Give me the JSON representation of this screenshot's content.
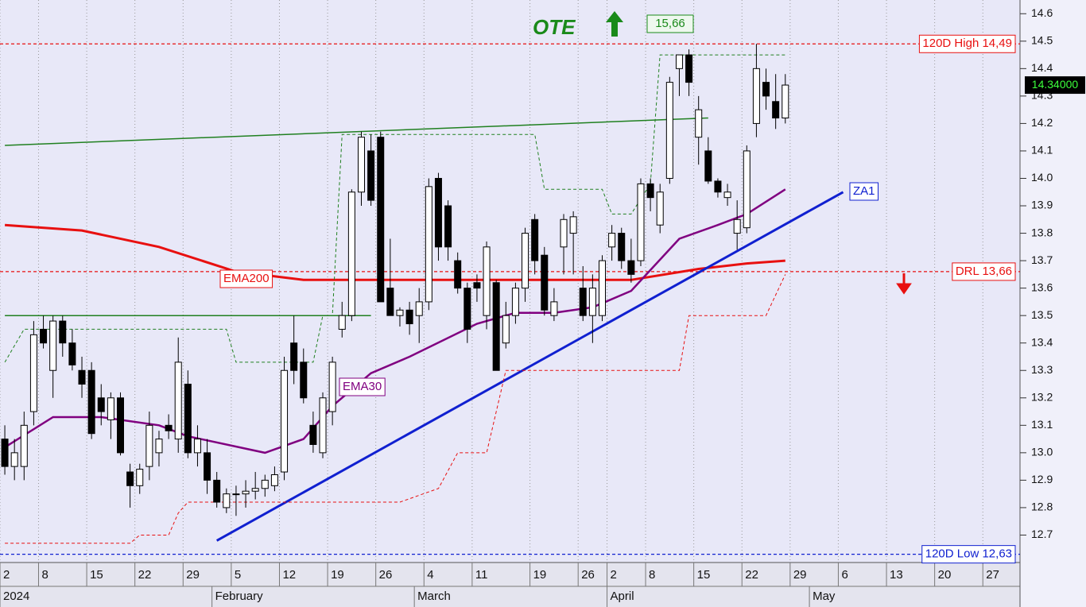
{
  "chart_data": {
    "type": "candlestick",
    "x": [
      "2024-01-02",
      "2024-01-03",
      "2024-01-04",
      "2024-01-05",
      "2024-01-08",
      "2024-01-09",
      "2024-01-10",
      "2024-01-11",
      "2024-01-12",
      "2024-01-15",
      "2024-01-16",
      "2024-01-17",
      "2024-01-18",
      "2024-01-19",
      "2024-01-22",
      "2024-01-23",
      "2024-01-24",
      "2024-01-25",
      "2024-01-26",
      "2024-01-29",
      "2024-01-30",
      "2024-01-31",
      "2024-02-01",
      "2024-02-02",
      "2024-02-05",
      "2024-02-06",
      "2024-02-07",
      "2024-02-08",
      "2024-02-09",
      "2024-02-12",
      "2024-02-13",
      "2024-02-14",
      "2024-02-15",
      "2024-02-16",
      "2024-02-19",
      "2024-02-20",
      "2024-02-21",
      "2024-02-22",
      "2024-02-23",
      "2024-02-26",
      "2024-02-27",
      "2024-02-28",
      "2024-02-29",
      "2024-03-01",
      "2024-03-04",
      "2024-03-05",
      "2024-03-06",
      "2024-03-07",
      "2024-03-08",
      "2024-03-11",
      "2024-03-12",
      "2024-03-13",
      "2024-03-14",
      "2024-03-15",
      "2024-03-18",
      "2024-03-19",
      "2024-03-20",
      "2024-03-21",
      "2024-03-22",
      "2024-03-25",
      "2024-03-26",
      "2024-03-27",
      "2024-03-28",
      "2024-04-02",
      "2024-04-03",
      "2024-04-04",
      "2024-04-05",
      "2024-04-08",
      "2024-04-09",
      "2024-04-10",
      "2024-04-11",
      "2024-04-12",
      "2024-04-15",
      "2024-04-16",
      "2024-04-17",
      "2024-04-18",
      "2024-04-19",
      "2024-04-22",
      "2024-04-23",
      "2024-04-24",
      "2024-04-25",
      "2024-04-26"
    ],
    "open": [
      13.05,
      12.95,
      12.95,
      13.15,
      13.45,
      13.3,
      13.48,
      13.4,
      13.3,
      13.3,
      13.2,
      13.12,
      13.2,
      12.93,
      12.88,
      12.95,
      13.0,
      13.1,
      13.05,
      13.25,
      13.0,
      13.0,
      12.9,
      12.8,
      12.85,
      12.85,
      12.86,
      12.87,
      12.88,
      12.93,
      13.4,
      13.33,
      13.1,
      13.0,
      13.15,
      13.45,
      13.5,
      13.95,
      14.1,
      14.15,
      13.6,
      13.5,
      13.52,
      13.5,
      13.55,
      14.0,
      13.9,
      13.7,
      13.6,
      13.62,
      13.5,
      13.62,
      13.4,
      13.5,
      13.6,
      13.85,
      13.72,
      13.5,
      13.75,
      13.8,
      13.6,
      13.5,
      13.5,
      13.75,
      13.8,
      13.7,
      13.7,
      13.98,
      13.83,
      14.0,
      14.4,
      14.45,
      14.15,
      14.1,
      13.99,
      13.93,
      13.8,
      13.82,
      14.2,
      14.35,
      14.28,
      14.22
    ],
    "high": [
      13.1,
      13.05,
      13.15,
      13.48,
      13.5,
      13.5,
      13.5,
      13.45,
      13.35,
      13.33,
      13.25,
      13.22,
      13.22,
      12.96,
      12.96,
      13.15,
      13.08,
      13.14,
      13.42,
      13.3,
      13.1,
      13.05,
      12.93,
      12.87,
      12.88,
      12.9,
      12.93,
      12.92,
      12.95,
      13.35,
      13.5,
      13.38,
      13.15,
      13.22,
      13.35,
      13.55,
      13.96,
      14.17,
      14.16,
      14.17,
      13.78,
      13.53,
      13.55,
      13.6,
      14.0,
      14.02,
      13.92,
      13.73,
      13.62,
      13.65,
      13.77,
      13.63,
      13.55,
      13.62,
      13.82,
      13.87,
      13.75,
      13.6,
      13.87,
      13.88,
      13.68,
      13.65,
      13.72,
      13.83,
      13.82,
      13.78,
      14.0,
      14.0,
      13.98,
      14.37,
      14.45,
      14.47,
      14.3,
      14.15,
      14.0,
      13.98,
      13.92,
      14.12,
      14.49,
      14.4,
      14.38,
      14.38
    ],
    "low": [
      12.92,
      12.9,
      12.9,
      13.1,
      13.38,
      13.2,
      13.35,
      13.3,
      13.2,
      13.05,
      13.1,
      13.05,
      12.99,
      12.8,
      12.85,
      12.9,
      12.95,
      13.05,
      13.0,
      12.98,
      12.95,
      12.85,
      12.8,
      12.78,
      12.77,
      12.8,
      12.83,
      12.84,
      12.86,
      12.9,
      13.25,
      13.18,
      13.0,
      12.98,
      13.1,
      13.42,
      13.48,
      13.9,
      13.9,
      13.55,
      13.5,
      13.46,
      13.43,
      13.4,
      13.52,
      13.7,
      13.7,
      13.58,
      13.4,
      13.55,
      13.45,
      13.3,
      13.38,
      13.47,
      13.55,
      13.65,
      13.5,
      13.48,
      13.65,
      13.65,
      13.48,
      13.4,
      13.48,
      13.7,
      13.67,
      13.62,
      13.68,
      13.88,
      13.8,
      13.98,
      14.3,
      14.3,
      14.05,
      13.98,
      13.93,
      13.9,
      13.74,
      13.8,
      14.15,
      14.25,
      14.18,
      14.2
    ],
    "close": [
      12.95,
      13.0,
      13.1,
      13.43,
      13.4,
      13.48,
      13.4,
      13.32,
      13.25,
      13.07,
      13.15,
      13.2,
      13.0,
      12.88,
      12.94,
      13.1,
      13.05,
      13.08,
      13.33,
      13.0,
      13.05,
      12.9,
      12.82,
      12.85,
      12.85,
      12.86,
      12.87,
      12.9,
      12.92,
      13.3,
      13.3,
      13.2,
      13.03,
      13.2,
      13.33,
      13.5,
      13.95,
      14.15,
      13.92,
      13.55,
      13.5,
      13.52,
      13.47,
      13.55,
      13.97,
      13.75,
      13.75,
      13.6,
      13.45,
      13.6,
      13.75,
      13.3,
      13.5,
      13.6,
      13.8,
      13.7,
      13.52,
      13.55,
      13.85,
      13.86,
      13.5,
      13.6,
      13.7,
      13.8,
      13.7,
      13.65,
      13.98,
      13.93,
      13.95,
      14.35,
      14.45,
      14.35,
      14.25,
      13.99,
      13.95,
      13.95,
      13.85,
      14.1,
      14.4,
      14.3,
      14.22,
      14.34
    ],
    "ylim": [
      12.6,
      14.65
    ],
    "yticks": [
      12.7,
      12.8,
      12.9,
      {
        "value": 13,
        "label": "13.0"
      },
      13.1,
      13.2,
      13.3,
      13.4,
      13.5,
      13.6,
      13.7,
      13.8,
      13.9,
      {
        "value": 14,
        "label": "14.0"
      },
      14.1,
      14.2,
      14.3,
      14.4,
      14.5,
      14.6
    ],
    "xticks": [
      {
        "value": "2024-01-02",
        "label": "2"
      },
      {
        "value": "2024-01-08",
        "label": "8"
      },
      {
        "value": "2024-01-15",
        "label": "15"
      },
      {
        "value": "2024-01-22",
        "label": "22"
      },
      {
        "value": "2024-01-29",
        "label": "29"
      },
      {
        "value": "2024-02-05",
        "label": "5"
      },
      {
        "value": "2024-02-12",
        "label": "12"
      },
      {
        "value": "2024-02-19",
        "label": "19"
      },
      {
        "value": "2024-02-26",
        "label": "26"
      },
      {
        "value": "2024-03-04",
        "label": "4"
      },
      {
        "value": "2024-03-11",
        "label": "11"
      },
      {
        "value": "2024-03-19",
        "label": "19"
      },
      {
        "value": "2024-03-26",
        "label": "26"
      },
      {
        "value": "2024-04-02",
        "label": "2"
      },
      {
        "value": "2024-04-08",
        "label": "8"
      },
      {
        "value": "2024-04-15",
        "label": "15"
      },
      {
        "value": "2024-04-22",
        "label": "22"
      },
      {
        "value": "2024-04-29",
        "label": "29"
      },
      {
        "value": "2024-05-06",
        "label": "6"
      },
      {
        "value": "2024-05-13",
        "label": "13"
      },
      {
        "value": "2024-05-20",
        "label": "20"
      },
      {
        "value": "2024-05-27",
        "label": "27"
      }
    ],
    "months": [
      {
        "value": "2024-01-02",
        "label": "2024"
      },
      {
        "value": "2024-02-01",
        "label": "February"
      },
      {
        "value": "2024-03-01",
        "label": "March"
      },
      {
        "value": "2024-04-02",
        "label": "April"
      },
      {
        "value": "2024-05-01",
        "label": "May"
      }
    ],
    "grid": true,
    "overlays": [
      {
        "name": "EMA200",
        "color": "#e81010",
        "line_width": 3,
        "dashed": false,
        "x": [
          "2024-01-02",
          "2024-01-12",
          "2024-01-24",
          "2024-02-05",
          "2024-02-14",
          "2024-02-28",
          "2024-03-11",
          "2024-03-21",
          "2024-04-04",
          "2024-04-15",
          "2024-04-22",
          "2024-04-26"
        ],
        "values": [
          13.83,
          13.81,
          13.75,
          13.66,
          13.63,
          13.63,
          13.63,
          13.63,
          13.63,
          13.67,
          13.69,
          13.7
        ]
      },
      {
        "name": "EMA30",
        "color": "#800080",
        "line_width": 2.5,
        "dashed": false,
        "x": [
          "2024-01-02",
          "2024-01-09",
          "2024-01-16",
          "2024-01-24",
          "2024-01-29",
          "2024-02-08",
          "2024-02-14",
          "2024-02-19",
          "2024-02-23",
          "2024-02-29",
          "2024-03-11",
          "2024-03-15",
          "2024-03-21",
          "2024-03-27",
          "2024-04-04",
          "2024-04-11",
          "2024-04-17",
          "2024-04-22",
          "2024-04-26"
        ],
        "values": [
          13.02,
          13.13,
          13.13,
          13.1,
          13.06,
          13.0,
          13.05,
          13.17,
          13.29,
          13.35,
          13.47,
          13.51,
          13.51,
          13.53,
          13.59,
          13.78,
          13.83,
          13.87,
          13.96
        ]
      },
      {
        "name": "ZA1",
        "color": "#1020d0",
        "line_width": 3,
        "dashed": false,
        "x": [
          "2024-02-01",
          "2024-05-06"
        ],
        "values": [
          12.68,
          13.95
        ]
      },
      {
        "color": "#208020",
        "line_width": 1.5,
        "dashed": false,
        "x": [
          "2024-01-02",
          "2024-04-16"
        ],
        "values": [
          14.12,
          14.22
        ]
      },
      {
        "color": "#208020",
        "line_width": 1.5,
        "dashed": false,
        "x": [
          "2024-01-02",
          "2024-02-23"
        ],
        "values": [
          13.5,
          13.5
        ]
      },
      {
        "color": "#208020",
        "line_width": 1,
        "dashed": true,
        "x": [
          "2024-01-02",
          "2024-01-04",
          "2024-02-02",
          "2024-02-05",
          "2024-02-15",
          "2024-02-16",
          "2024-02-19",
          "2024-02-20",
          "2024-03-19",
          "2024-03-20",
          "2024-03-28",
          "2024-04-02",
          "2024-04-04",
          "2024-04-08",
          "2024-04-09",
          "2024-04-26"
        ],
        "values": [
          13.33,
          13.45,
          13.45,
          13.33,
          13.33,
          13.5,
          13.5,
          14.16,
          14.16,
          13.96,
          13.96,
          13.87,
          13.87,
          13.98,
          14.45,
          14.45
        ]
      },
      {
        "color": "#e81010",
        "line_width": 1,
        "dashed": true,
        "x": [
          "2024-01-02",
          "2024-01-19",
          "2024-01-22",
          "2024-01-25",
          "2024-01-26",
          "2024-01-29",
          "2024-02-28",
          "2024-03-05",
          "2024-03-07",
          "2024-03-12",
          "2024-03-14",
          "2024-04-11",
          "2024-04-12",
          "2024-04-24",
          "2024-04-26"
        ],
        "values": [
          12.67,
          12.67,
          12.7,
          12.7,
          12.78,
          12.82,
          12.82,
          12.87,
          13.0,
          13.0,
          13.3,
          13.3,
          13.5,
          13.5,
          13.65
        ]
      }
    ],
    "levels": [
      {
        "label": "120D High 14,49",
        "value": 14.49,
        "color": "#e81010"
      },
      {
        "label": "DRL 13,66",
        "value": 13.66,
        "color": "#e81010"
      },
      {
        "label": "120D Low 12,63",
        "value": 12.63,
        "color": "#1020d0"
      }
    ],
    "last_price": {
      "value": 14.34,
      "label": "14.34000"
    },
    "annotations": {
      "signal": "OTE",
      "target": "15,66"
    }
  }
}
